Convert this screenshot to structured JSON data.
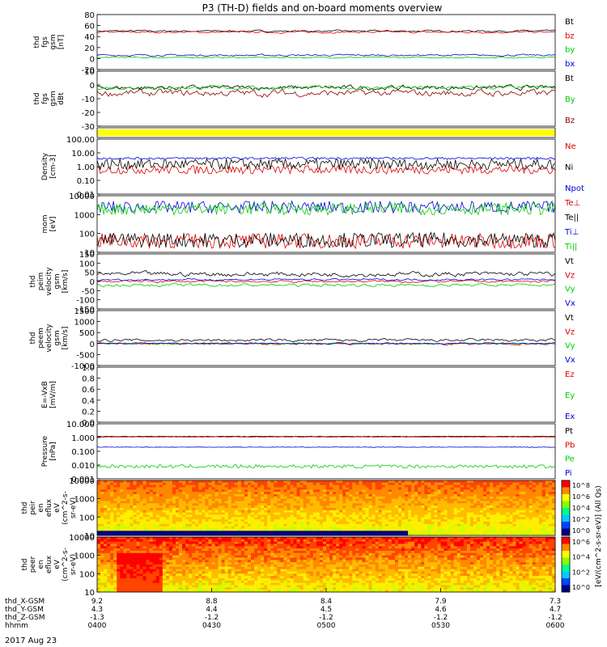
{
  "title": "P3 (TH-D) fields and on-board moments overview",
  "date_label": "2017 Aug 23",
  "colors": {
    "black": "#000000",
    "red": "#e00000",
    "green": "#00cc00",
    "blue": "#0000dd",
    "yellow": "#ffff00",
    "darkred": "#8b0000"
  },
  "time_axis": {
    "rows": [
      {
        "label": "thd_X-GSM",
        "values": [
          "9.2",
          "8.8",
          "8.4",
          "7.9",
          "7.3"
        ]
      },
      {
        "label": "thd_Y-GSM",
        "values": [
          "4.3",
          "4.4",
          "4.5",
          "4.6",
          "4.7"
        ]
      },
      {
        "label": "thd_Z-GSM",
        "values": [
          "-1.3",
          "-1.2",
          "-1.2",
          "-1.2",
          "-1.2"
        ]
      },
      {
        "label": "hhmm",
        "values": [
          "0400",
          "0430",
          "0500",
          "0530",
          "0600"
        ]
      }
    ]
  },
  "colorbar": {
    "label": "[eV/(cm^2-s-sr-eV)] (All Qs)",
    "ticks_top": [
      "10^8",
      "10^6",
      "10^4",
      "10^2",
      "10^0"
    ],
    "ticks_bottom": [
      "10^6",
      "10^4",
      "10^2",
      "10^0"
    ]
  },
  "chart_data": [
    {
      "type": "line",
      "ylabel": [
        "thd",
        "fgs",
        "gsm",
        "[nT]"
      ],
      "ylim": [
        -20,
        80
      ],
      "yticks": [
        "80",
        "60",
        "40",
        "20",
        "0",
        "-20"
      ],
      "series": [
        {
          "name": "Bt",
          "color": "#000000",
          "level": 50,
          "noise": 3
        },
        {
          "name": "bz",
          "color": "#e00000",
          "level": 48,
          "noise": 3
        },
        {
          "name": "by",
          "color": "#00cc00",
          "level": 2,
          "noise": 2
        },
        {
          "name": "bx",
          "color": "#0000dd",
          "level": 6,
          "noise": 3
        }
      ]
    },
    {
      "type": "line",
      "ylabel": [
        "thd",
        "fgs",
        "gsm",
        "dBt"
      ],
      "ylim": [
        -35,
        15
      ],
      "yticks": [
        "10",
        "0",
        "-10",
        "-20",
        "-30"
      ],
      "series": [
        {
          "name": "Bt",
          "color": "#000000",
          "level": 0,
          "noise": 4
        },
        {
          "name": "By",
          "color": "#00cc00",
          "level": 0,
          "noise": 3
        },
        {
          "name": "Bz",
          "color": "#8b0000",
          "level": -5,
          "noise": 6
        }
      ]
    },
    {
      "type": "bar",
      "ylabel": [],
      "ylim": [
        0,
        1
      ],
      "yticks": [],
      "series": [
        {
          "name": "",
          "color": "#ffff00",
          "level": 1,
          "noise": 0
        }
      ]
    },
    {
      "type": "line",
      "ylabel": [
        "Density",
        "[cm-3]"
      ],
      "ylim": [
        0.01,
        100
      ],
      "log": true,
      "yticks": [
        "100.00",
        "10.00",
        "1.00",
        "0.10",
        "0.01"
      ],
      "series": [
        {
          "name": "Ne",
          "color": "#e00000",
          "level": 0.6,
          "noise": 0.8
        },
        {
          "name": "Ni",
          "color": "#000000",
          "level": 1.5,
          "noise": 1.0
        },
        {
          "name": "Npot",
          "color": "#0000dd",
          "level": 4,
          "noise": 0.2
        }
      ]
    },
    {
      "type": "line",
      "ylabel": [
        "mom",
        "[eV]"
      ],
      "ylim": [
        10,
        10000
      ],
      "log": true,
      "yticks": [
        "10000",
        "1000",
        "100",
        "10"
      ],
      "series": [
        {
          "name": "Te⊥",
          "color": "#e00000",
          "level": 40,
          "noise": 1.0
        },
        {
          "name": "Te||",
          "color": "#000000",
          "level": 45,
          "noise": 1.0
        },
        {
          "name": "Ti⊥",
          "color": "#0000dd",
          "level": 2500,
          "noise": 0.8
        },
        {
          "name": "Ti||",
          "color": "#00cc00",
          "level": 2000,
          "noise": 0.8
        }
      ]
    },
    {
      "type": "line",
      "ylabel": [
        "thd",
        "peim",
        "velocity",
        "gsm",
        "[km/s]"
      ],
      "ylim": [
        -150,
        150
      ],
      "yticks": [
        "150",
        "100",
        "50",
        "0",
        "-50",
        "-100",
        "-150"
      ],
      "series": [
        {
          "name": "Vt",
          "color": "#000000",
          "level": 40,
          "noise": 25
        },
        {
          "name": "Vz",
          "color": "#e00000",
          "level": 0,
          "noise": 12
        },
        {
          "name": "Vy",
          "color": "#00cc00",
          "level": -20,
          "noise": 15
        },
        {
          "name": "Vx",
          "color": "#0000dd",
          "level": 10,
          "noise": 10
        }
      ]
    },
    {
      "type": "line",
      "ylabel": [
        "thd",
        "peem",
        "velocity",
        "gsm",
        "[km/s]"
      ],
      "ylim": [
        -1000,
        1500
      ],
      "yticks": [
        "1500",
        "1000",
        "500",
        "0",
        "-500",
        "-1000"
      ],
      "series": [
        {
          "name": "Vt",
          "color": "#000000",
          "level": 150,
          "noise": 120
        },
        {
          "name": "Vz",
          "color": "#e00000",
          "level": 0,
          "noise": 100
        },
        {
          "name": "Vy",
          "color": "#00cc00",
          "level": 0,
          "noise": 60
        },
        {
          "name": "Vx",
          "color": "#0000dd",
          "level": 0,
          "noise": 50
        }
      ]
    },
    {
      "type": "line",
      "ylabel": [
        "E=-VxB",
        "[mV/m]"
      ],
      "ylim": [
        0,
        1
      ],
      "yticks": [
        "1.0",
        "0.8",
        "0.6",
        "0.4",
        "0.2",
        "0.0"
      ],
      "series": [
        {
          "name": "Ez",
          "color": "#e00000",
          "level": null,
          "noise": 0
        },
        {
          "name": "Ey",
          "color": "#00cc00",
          "level": null,
          "noise": 0
        },
        {
          "name": "Ex",
          "color": "#0000dd",
          "level": null,
          "noise": 0
        }
      ]
    },
    {
      "type": "line",
      "ylabel": [
        "Pressure",
        "[nPa]"
      ],
      "ylim": [
        0.001,
        10
      ],
      "log": true,
      "yticks": [
        "10.000",
        "1.000",
        "0.100",
        "0.010",
        "0.001"
      ],
      "series": [
        {
          "name": "Pt",
          "color": "#000000",
          "level": 1.2,
          "noise": 0.05
        },
        {
          "name": "Pb",
          "color": "#e00000",
          "level": 1.1,
          "noise": 0.05
        },
        {
          "name": "Pe",
          "color": "#00cc00",
          "level": 0.008,
          "noise": 0.3
        },
        {
          "name": "Pi",
          "color": "#0000dd",
          "level": 0.2,
          "noise": 0.05
        }
      ]
    },
    {
      "type": "heatmap",
      "ylabel": [
        "thd",
        "peir",
        "en",
        "eflux",
        "eV",
        "(cm^2-s-",
        "sr-eV)"
      ],
      "ylim": [
        5,
        20000
      ],
      "log": true,
      "yticks": [
        "10000",
        "1000",
        "100",
        "10"
      ]
    },
    {
      "type": "heatmap",
      "ylabel": [
        "thd",
        "peer",
        "en",
        "eflux",
        "eV",
        "(cm^2-s-",
        "sr-eV)"
      ],
      "ylim": [
        5,
        20000
      ],
      "log": true,
      "yticks": [
        "10000",
        "1000",
        "100",
        "10"
      ]
    }
  ]
}
